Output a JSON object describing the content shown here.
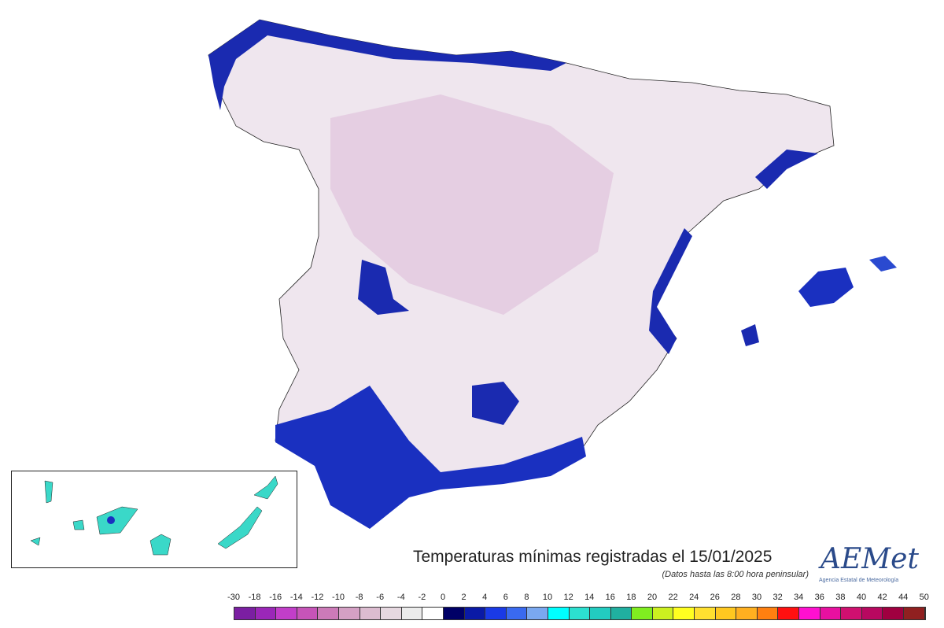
{
  "title": "Temperaturas mínimas registradas el 15/01/2025",
  "subtitle": "(Datos hasta las 8:00 hora peninsular)",
  "logo": {
    "word": "AEMet",
    "caption": "Agencia Estatal de Meteorología"
  },
  "legend": {
    "labels": [
      "-30",
      "-18",
      "-16",
      "-14",
      "-12",
      "-10",
      "-8",
      "-6",
      "-4",
      "-2",
      "0",
      "2",
      "4",
      "6",
      "8",
      "10",
      "12",
      "14",
      "16",
      "18",
      "20",
      "22",
      "24",
      "26",
      "28",
      "30",
      "32",
      "34",
      "36",
      "38",
      "40",
      "42",
      "44",
      "50"
    ],
    "colors": [
      "#7b1fa2",
      "#9b27b8",
      "#c23ec9",
      "#c654b8",
      "#cc7ab8",
      "#d4a0c4",
      "#dcbcd0",
      "#e6d8e0",
      "#ececec",
      "#ffffff",
      "#000066",
      "#0a1aa6",
      "#1a3ae6",
      "#3a6af0",
      "#7aa8f0",
      "#00ffff",
      "#2ce0d0",
      "#22ccc0",
      "#20b0a0",
      "#80ee20",
      "#ccf020",
      "#ffff20",
      "#ffe030",
      "#ffc820",
      "#ffb020",
      "#ff8010",
      "#ff1010",
      "#ff10d0",
      "#e810a0",
      "#d01070",
      "#b80860",
      "#a00040",
      "#902020"
    ]
  },
  "map_colors": {
    "land_cold": "#e8d4e4",
    "land_mild": "#f4eef2",
    "coast": "#1a2ab0",
    "canarias": "#3ad8c8"
  }
}
